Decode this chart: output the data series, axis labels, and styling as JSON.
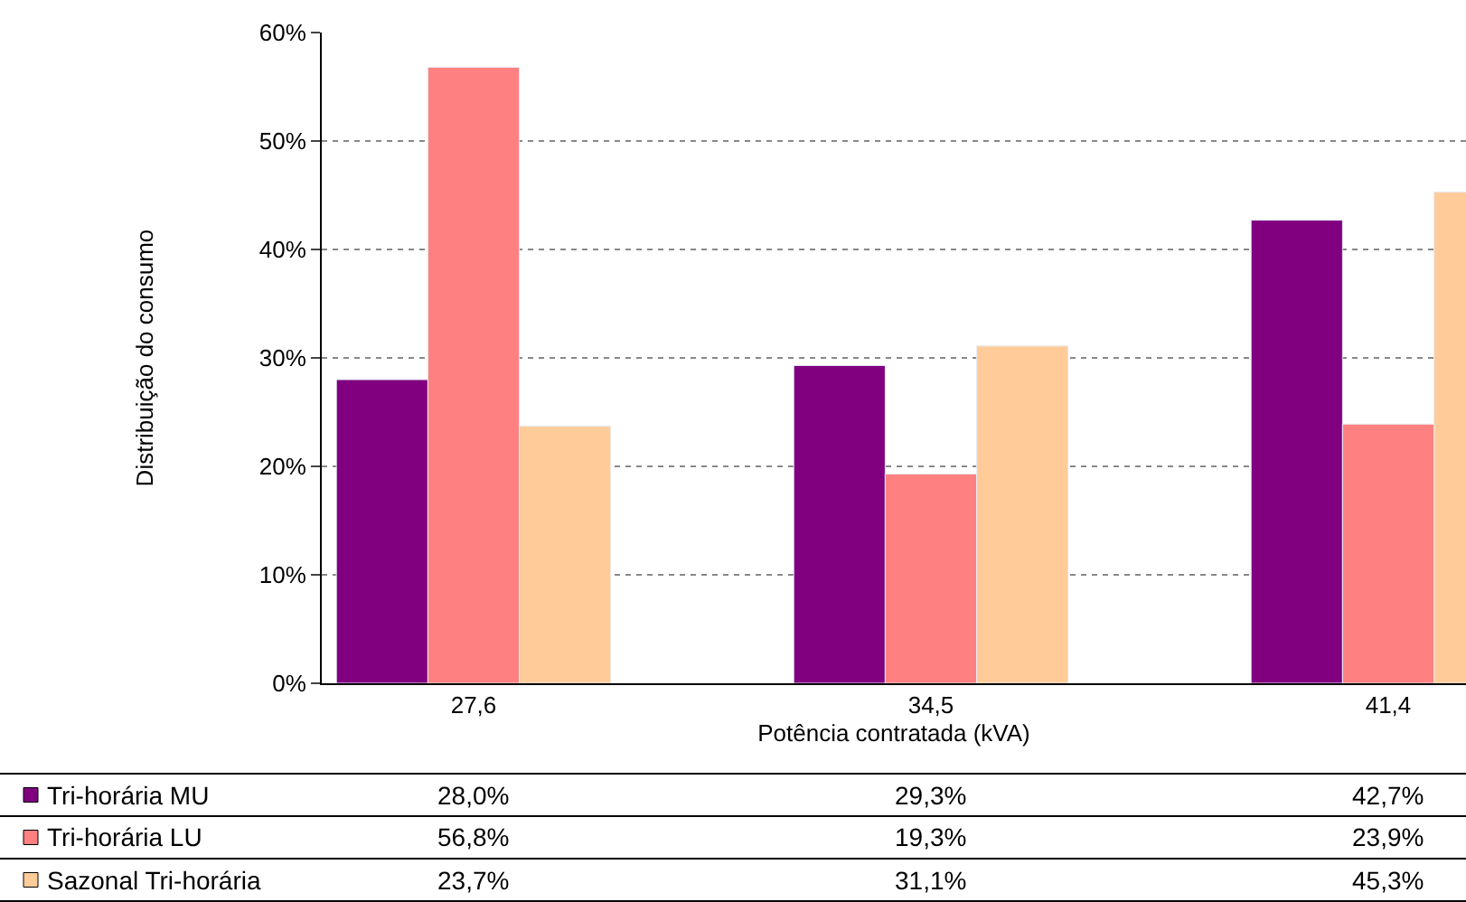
{
  "chart_data": {
    "type": "bar",
    "xlabel": "Potência contratada (kVA)",
    "ylabel": "Distribuição do consumo",
    "categories": [
      "27,6",
      "34,5",
      "41,4"
    ],
    "series": [
      {
        "name": "Tri-horária MU",
        "color": "#800080",
        "values": [
          28.0,
          29.3,
          42.7
        ],
        "value_labels": [
          "28,0%",
          "29,3%",
          "42,7%"
        ]
      },
      {
        "name": "Tri-horária LU",
        "color": "#ff8080",
        "values": [
          56.8,
          19.3,
          23.9
        ],
        "value_labels": [
          "56,8%",
          "19,3%",
          "23,9%"
        ]
      },
      {
        "name": "Sazonal Tri-horária",
        "color": "#ffcc99",
        "values": [
          23.7,
          31.1,
          45.3
        ],
        "value_labels": [
          "23,7%",
          "31,1%",
          "45,3%"
        ]
      }
    ],
    "ylim": [
      0,
      60
    ],
    "yticks": [
      {
        "value": 0,
        "label": "0%"
      },
      {
        "value": 10,
        "label": "10%"
      },
      {
        "value": 20,
        "label": "20%"
      },
      {
        "value": 30,
        "label": "30%"
      },
      {
        "value": 40,
        "label": "40%"
      },
      {
        "value": 50,
        "label": "50%"
      },
      {
        "value": 60,
        "label": "60%"
      }
    ],
    "grid": "y",
    "legend": "bottom"
  }
}
